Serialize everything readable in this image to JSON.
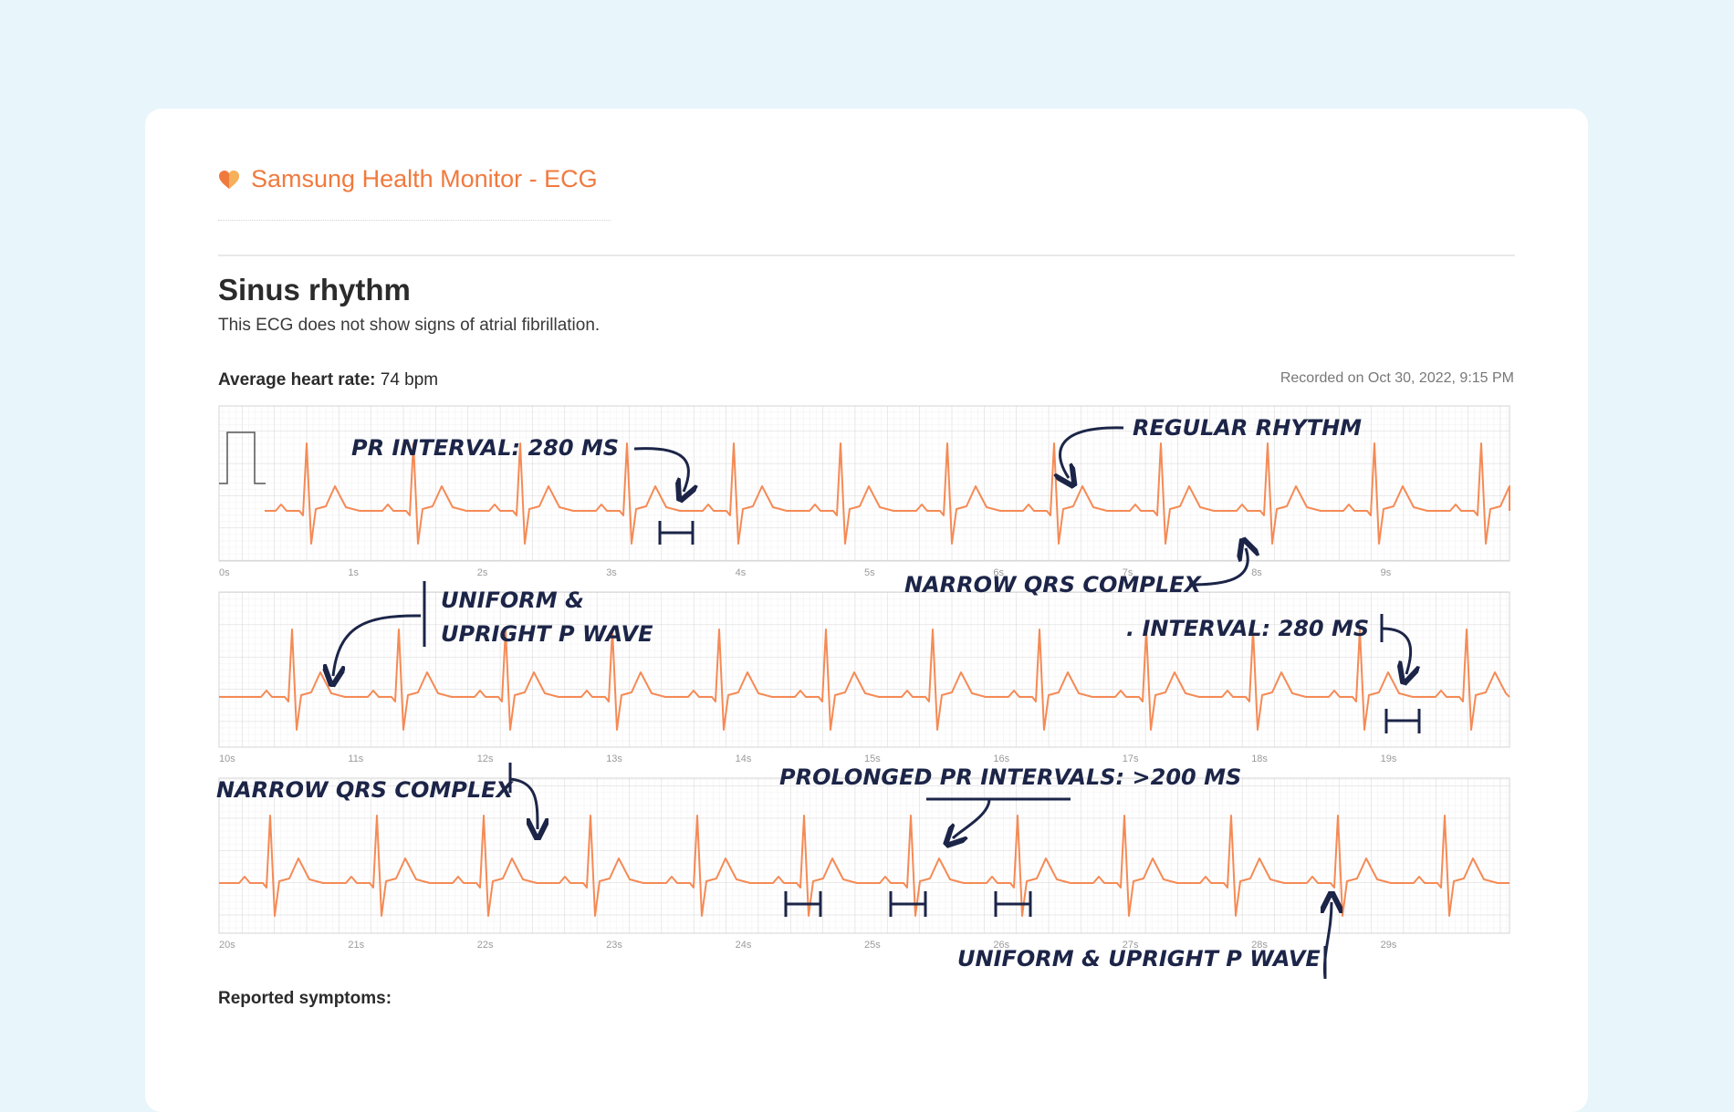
{
  "header": {
    "brand_icon": "heart-icon",
    "title": "Samsung Health Monitor - ECG"
  },
  "result": {
    "title": "Sinus rhythm",
    "description": "This ECG does not show signs of atrial fibrillation."
  },
  "heart_rate": {
    "label": "Average heart rate:",
    "value": " 74 bpm"
  },
  "recorded": "Recorded on Oct 30, 2022, 9:15 PM",
  "strips": [
    {
      "ticks": [
        "0s",
        "1s",
        "2s",
        "3s",
        "4s",
        "5s",
        "6s",
        "7s",
        "8s",
        "9s"
      ]
    },
    {
      "ticks": [
        "10s",
        "11s",
        "12s",
        "13s",
        "14s",
        "15s",
        "16s",
        "17s",
        "18s",
        "19s"
      ]
    },
    {
      "ticks": [
        "20s",
        "21s",
        "22s",
        "23s",
        "24s",
        "25s",
        "26s",
        "27s",
        "28s",
        "29s"
      ]
    }
  ],
  "annotations": {
    "pr1": "PR INTERVAL: 280 MS",
    "regular": "REGULAR RHYTHM",
    "qrs1": "NARROW QRS COMPLEX",
    "uniform1_line1": "UNIFORM &",
    "uniform1_line2": "UPRIGHT P WAVE",
    "pr2": ". INTERVAL: 280 MS",
    "qrs2": "NARROW QRS COMPLEX",
    "prolonged": "PROLONGED PR INTERVALS: >200 MS",
    "uniform2": "UNIFORM & UPRIGHT P WAVE"
  },
  "symptoms_label": "Reported symptoms:",
  "colors": {
    "accent": "#f07a3e",
    "ecg_trace": "#f58a55",
    "annotation_ink": "#1c2548",
    "background": "#e8f5fb"
  }
}
